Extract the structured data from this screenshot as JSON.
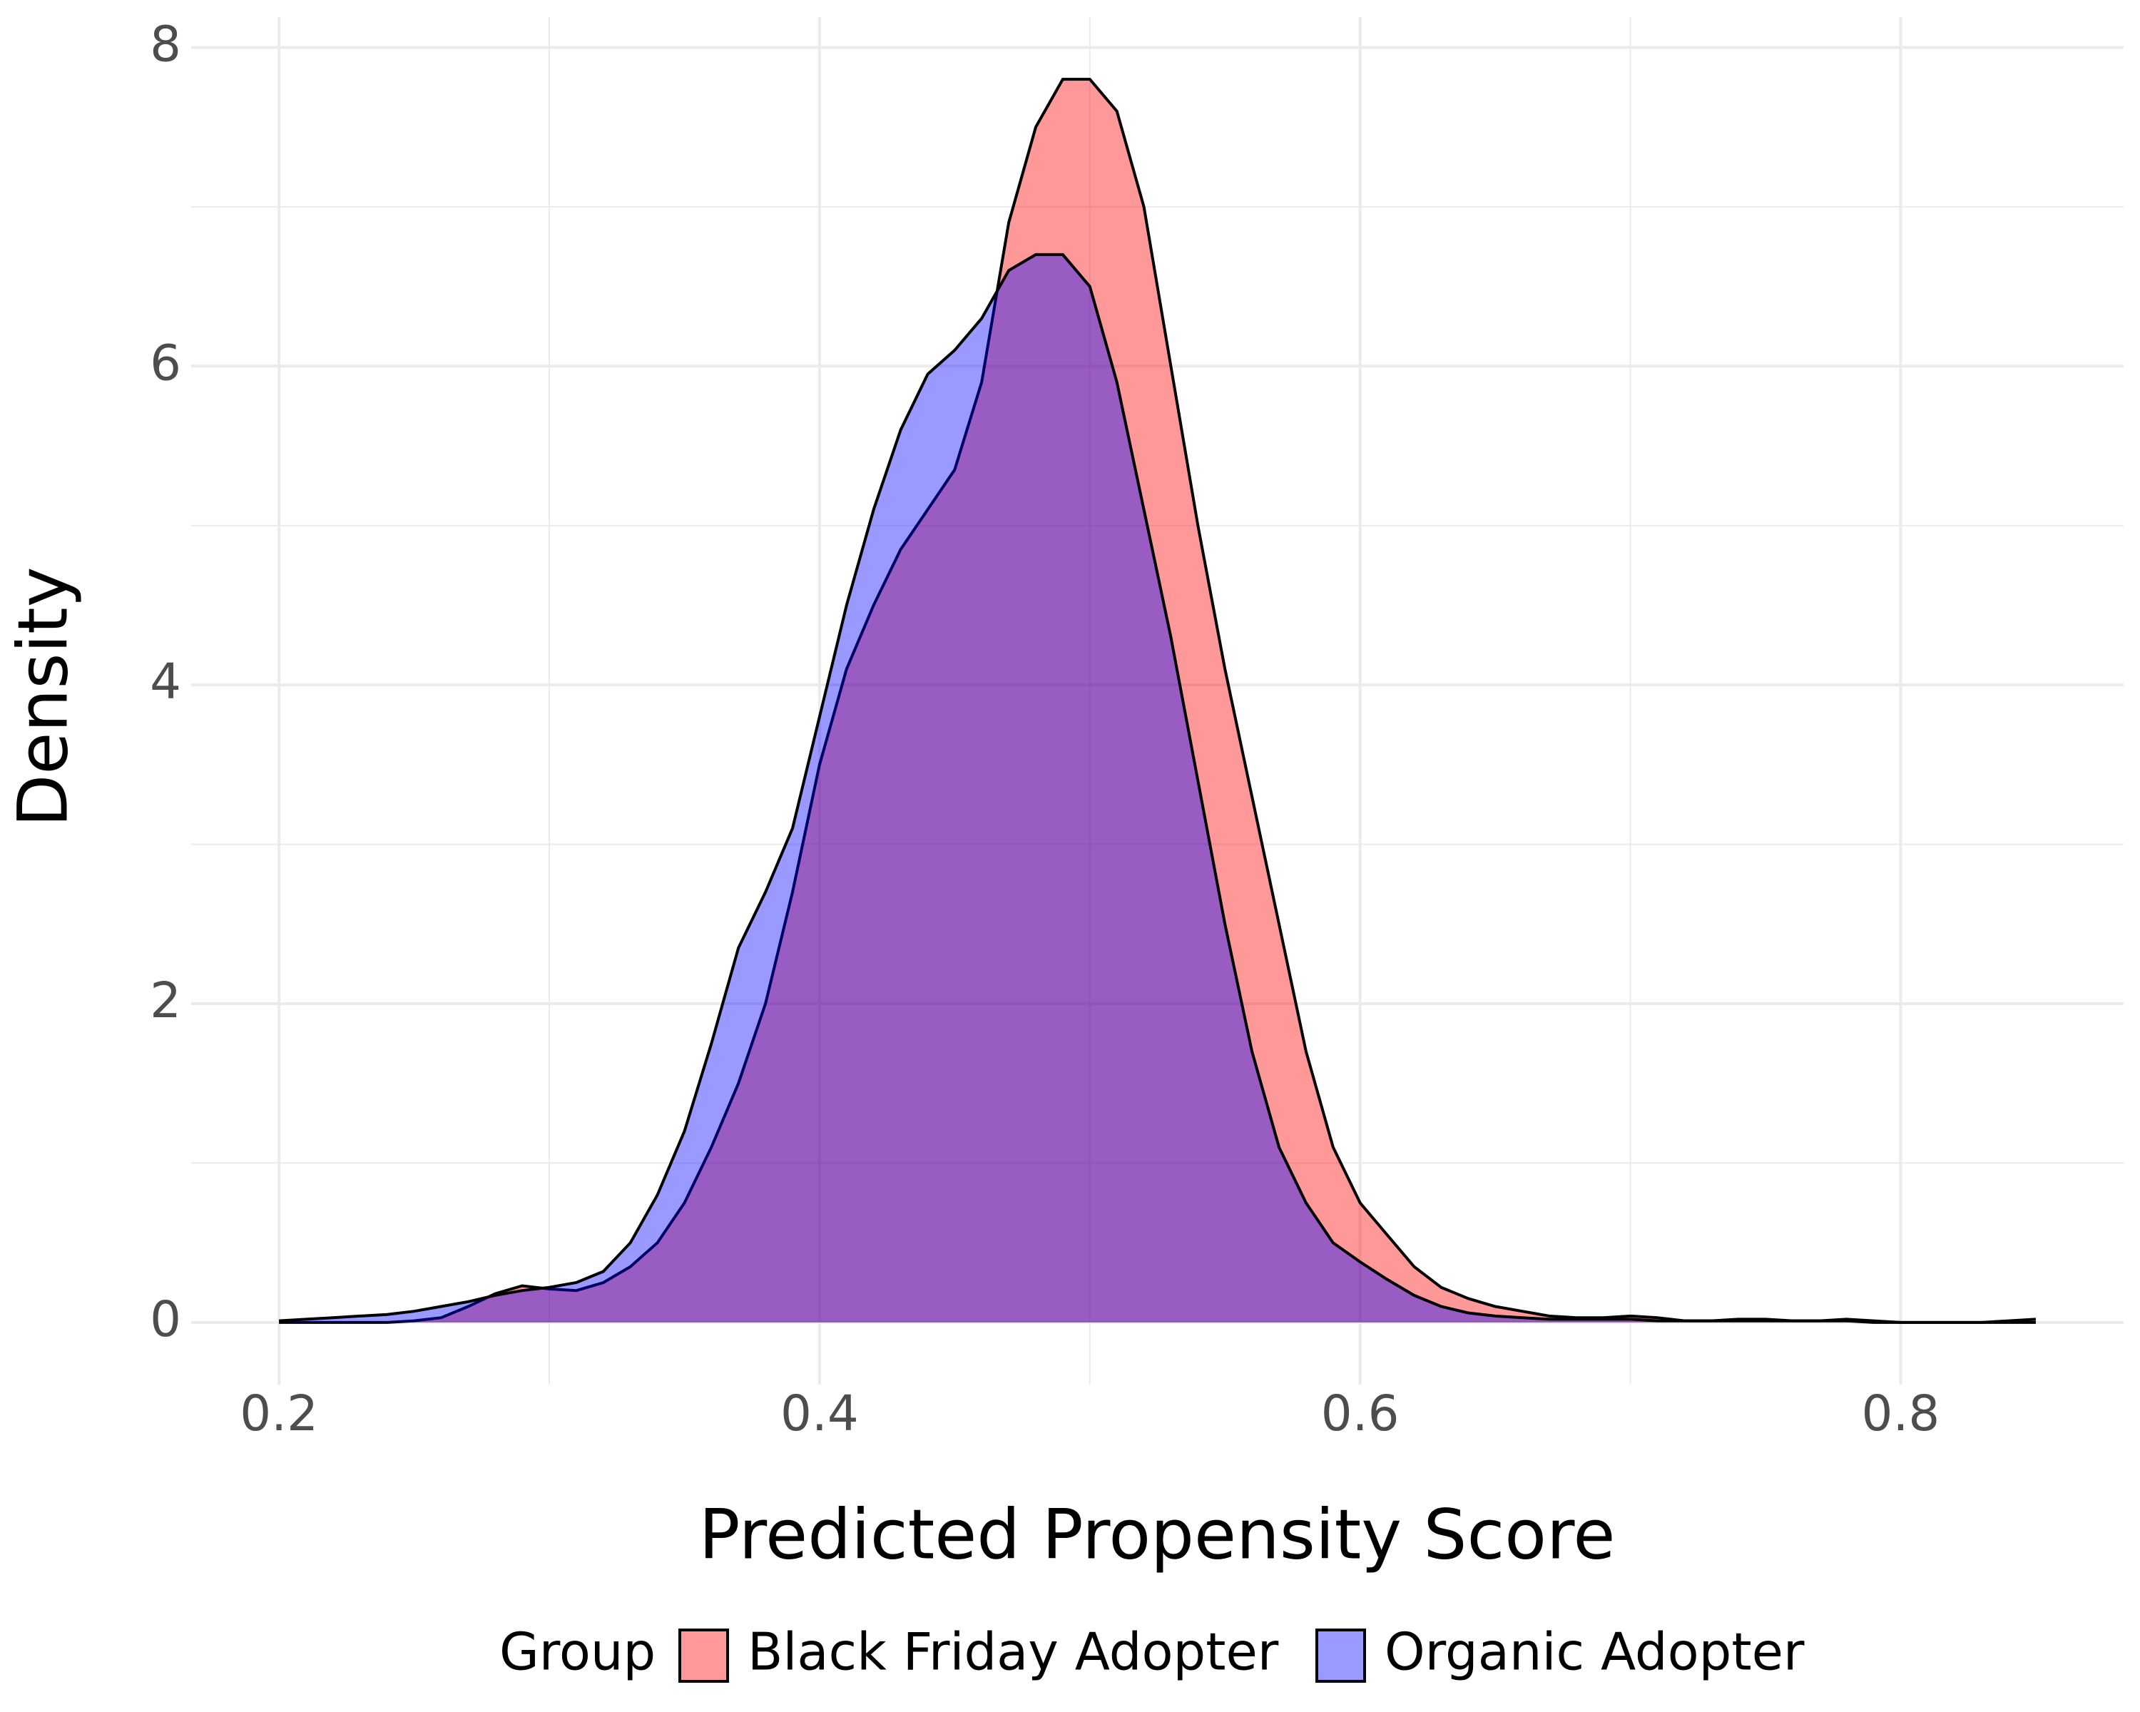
{
  "chart_data": {
    "type": "density",
    "x_label": "Predicted Propensity Score",
    "y_label": "Density",
    "legend_title": "Group",
    "legend_position": "bottom",
    "grid": true,
    "alpha": 0.4,
    "outline_color": "#000000",
    "x": [
      0.2,
      0.21,
      0.22,
      0.23,
      0.24,
      0.25,
      0.26,
      0.27,
      0.28,
      0.29,
      0.3,
      0.31,
      0.32,
      0.33,
      0.34,
      0.35,
      0.36,
      0.37,
      0.38,
      0.39,
      0.4,
      0.41,
      0.42,
      0.43,
      0.44,
      0.45,
      0.46,
      0.47,
      0.48,
      0.49,
      0.5,
      0.51,
      0.52,
      0.53,
      0.54,
      0.55,
      0.56,
      0.57,
      0.58,
      0.59,
      0.6,
      0.61,
      0.62,
      0.63,
      0.64,
      0.65,
      0.66,
      0.67,
      0.68,
      0.69,
      0.7,
      0.71,
      0.72,
      0.73,
      0.74,
      0.75,
      0.76,
      0.77,
      0.78,
      0.79,
      0.8,
      0.81,
      0.82,
      0.83,
      0.84,
      0.85
    ],
    "series": [
      {
        "name": "Black Friday Adopter",
        "color": "#FF0000",
        "values": [
          0,
          0,
          0,
          0,
          0,
          0.01,
          0.03,
          0.1,
          0.18,
          0.23,
          0.21,
          0.2,
          0.25,
          0.35,
          0.5,
          0.75,
          1.1,
          1.5,
          2.0,
          2.7,
          3.5,
          4.1,
          4.5,
          4.85,
          5.1,
          5.35,
          5.9,
          6.9,
          7.5,
          7.8,
          7.8,
          7.6,
          7.0,
          6.0,
          5.0,
          4.1,
          3.3,
          2.5,
          1.7,
          1.1,
          0.75,
          0.55,
          0.35,
          0.22,
          0.15,
          0.1,
          0.07,
          0.04,
          0.03,
          0.03,
          0.04,
          0.03,
          0.01,
          0.01,
          0.02,
          0.02,
          0.01,
          0.01,
          0.02,
          0.01,
          0,
          0,
          0,
          0,
          0.01,
          0.02
        ]
      },
      {
        "name": "Organic Adopter",
        "color": "#0000FF",
        "values": [
          0.01,
          0.02,
          0.03,
          0.04,
          0.05,
          0.07,
          0.1,
          0.13,
          0.17,
          0.2,
          0.22,
          0.25,
          0.32,
          0.5,
          0.8,
          1.2,
          1.75,
          2.35,
          2.7,
          3.1,
          3.8,
          4.5,
          5.1,
          5.6,
          5.95,
          6.1,
          6.3,
          6.6,
          6.7,
          6.7,
          6.5,
          5.9,
          5.1,
          4.3,
          3.4,
          2.5,
          1.7,
          1.1,
          0.75,
          0.5,
          0.38,
          0.27,
          0.17,
          0.1,
          0.06,
          0.04,
          0.03,
          0.02,
          0.02,
          0.02,
          0.02,
          0.01,
          0.01,
          0.01,
          0.01,
          0.01,
          0.01,
          0.01,
          0.01,
          0,
          0,
          0,
          0,
          0,
          0,
          0
        ]
      }
    ],
    "xlim": [
      0.1675,
      0.8825
    ],
    "ylim": [
      -0.39,
      8.19
    ],
    "xticks": [
      0.2,
      0.4,
      0.6,
      0.8
    ],
    "yticks": [
      0,
      2,
      4,
      6,
      8
    ],
    "xminor": [
      0.3,
      0.5,
      0.7
    ],
    "yminor": [
      1,
      3,
      5,
      7
    ]
  }
}
